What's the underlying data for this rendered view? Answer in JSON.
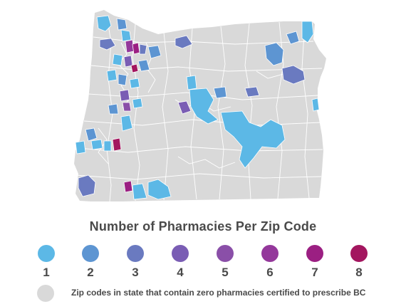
{
  "map": {
    "region": "Oregon",
    "zero_color": "#d9d9d9",
    "border_color": "#ffffff"
  },
  "legend": {
    "title": "Number of Pharmacies Per Zip Code",
    "items": [
      {
        "label": "1",
        "color": "#5cb8e6"
      },
      {
        "label": "2",
        "color": "#5d95d2"
      },
      {
        "label": "3",
        "color": "#6a7ac0"
      },
      {
        "label": "4",
        "color": "#7a5db4"
      },
      {
        "label": "5",
        "color": "#8a4fa8"
      },
      {
        "label": "6",
        "color": "#94389b"
      },
      {
        "label": "7",
        "color": "#9b1f82"
      },
      {
        "label": "8",
        "color": "#a3165f"
      }
    ],
    "zero_label": "Zip codes in state that contain zero pharmacies certified to prescribe BC",
    "zero_color": "#d9d9d9"
  }
}
